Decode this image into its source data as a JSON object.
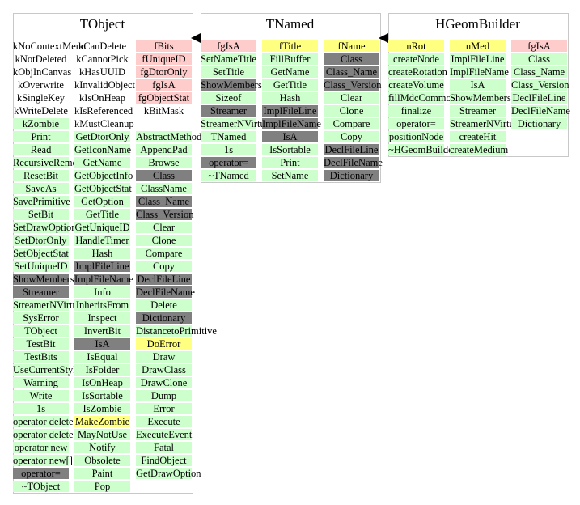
{
  "classes": [
    {
      "title": "TObject",
      "columns": [
        [
          {
            "t": "kNoContextMenu",
            "c": "white"
          },
          {
            "t": "kNotDeleted",
            "c": "white"
          },
          {
            "t": "kObjInCanvas",
            "c": "white"
          },
          {
            "t": "kOverwrite",
            "c": "white"
          },
          {
            "t": "kSingleKey",
            "c": "white"
          },
          {
            "t": "kWriteDelete",
            "c": "white"
          },
          {
            "t": "kZombie",
            "c": "green"
          },
          {
            "t": "Print",
            "c": "green"
          },
          {
            "t": "Read",
            "c": "green"
          },
          {
            "t": "RecursiveRemove",
            "c": "green"
          },
          {
            "t": "ResetBit",
            "c": "green"
          },
          {
            "t": "SaveAs",
            "c": "green"
          },
          {
            "t": "SavePrimitive",
            "c": "green"
          },
          {
            "t": "SetBit",
            "c": "green"
          },
          {
            "t": "SetDrawOption",
            "c": "green"
          },
          {
            "t": "SetDtorOnly",
            "c": "green"
          },
          {
            "t": "SetObjectStat",
            "c": "green"
          },
          {
            "t": "SetUniqueID",
            "c": "green"
          },
          {
            "t": "ShowMembers",
            "c": "gray"
          },
          {
            "t": "Streamer",
            "c": "gray"
          },
          {
            "t": "StreamerNVirtual",
            "c": "green"
          },
          {
            "t": "SysError",
            "c": "green"
          },
          {
            "t": "TObject",
            "c": "green"
          },
          {
            "t": "TestBit",
            "c": "green"
          },
          {
            "t": "TestBits",
            "c": "green"
          },
          {
            "t": "UseCurrentStyle",
            "c": "green"
          },
          {
            "t": "Warning",
            "c": "green"
          },
          {
            "t": "Write",
            "c": "green"
          },
          {
            "t": "1s",
            "c": "green"
          },
          {
            "t": "operator delete",
            "c": "green"
          },
          {
            "t": "operator delete[]",
            "c": "green"
          },
          {
            "t": "operator new",
            "c": "green"
          },
          {
            "t": "operator new[]",
            "c": "green"
          },
          {
            "t": "operator=",
            "c": "gray"
          },
          {
            "t": "~TObject",
            "c": "green"
          }
        ],
        [
          {
            "t": "kCanDelete",
            "c": "white"
          },
          {
            "t": "kCannotPick",
            "c": "white"
          },
          {
            "t": "kHasUUID",
            "c": "white"
          },
          {
            "t": "kInvalidObject",
            "c": "white"
          },
          {
            "t": "kIsOnHeap",
            "c": "white"
          },
          {
            "t": "kIsReferenced",
            "c": "white"
          },
          {
            "t": "kMustCleanup",
            "c": "white"
          },
          {
            "t": "GetDtorOnly",
            "c": "green"
          },
          {
            "t": "GetIconName",
            "c": "green"
          },
          {
            "t": "GetName",
            "c": "green"
          },
          {
            "t": "GetObjectInfo",
            "c": "green"
          },
          {
            "t": "GetObjectStat",
            "c": "green"
          },
          {
            "t": "GetOption",
            "c": "green"
          },
          {
            "t": "GetTitle",
            "c": "green"
          },
          {
            "t": "GetUniqueID",
            "c": "green"
          },
          {
            "t": "HandleTimer",
            "c": "green"
          },
          {
            "t": "Hash",
            "c": "green"
          },
          {
            "t": "ImplFileLine",
            "c": "gray"
          },
          {
            "t": "ImplFileName",
            "c": "gray"
          },
          {
            "t": "Info",
            "c": "green"
          },
          {
            "t": "InheritsFrom",
            "c": "green"
          },
          {
            "t": "Inspect",
            "c": "green"
          },
          {
            "t": "InvertBit",
            "c": "green"
          },
          {
            "t": "IsA",
            "c": "gray"
          },
          {
            "t": "IsEqual",
            "c": "green"
          },
          {
            "t": "IsFolder",
            "c": "green"
          },
          {
            "t": "IsOnHeap",
            "c": "green"
          },
          {
            "t": "IsSortable",
            "c": "green"
          },
          {
            "t": "IsZombie",
            "c": "green"
          },
          {
            "t": "MakeZombie",
            "c": "yellow"
          },
          {
            "t": "MayNotUse",
            "c": "green"
          },
          {
            "t": "Notify",
            "c": "green"
          },
          {
            "t": "Obsolete",
            "c": "green"
          },
          {
            "t": "Paint",
            "c": "green"
          },
          {
            "t": "Pop",
            "c": "green"
          }
        ],
        [
          {
            "t": "fBits",
            "c": "pink"
          },
          {
            "t": "fUniqueID",
            "c": "pink"
          },
          {
            "t": "fgDtorOnly",
            "c": "pink"
          },
          {
            "t": "fgIsA",
            "c": "pink"
          },
          {
            "t": "fgObjectStat",
            "c": "pink"
          },
          {
            "t": "kBitMask",
            "c": "white"
          },
          {
            "t": "",
            "c": "white"
          },
          {
            "t": "AbstractMethod",
            "c": "green"
          },
          {
            "t": "AppendPad",
            "c": "green"
          },
          {
            "t": "Browse",
            "c": "green"
          },
          {
            "t": "Class",
            "c": "gray"
          },
          {
            "t": "ClassName",
            "c": "green"
          },
          {
            "t": "Class_Name",
            "c": "gray"
          },
          {
            "t": "Class_Version",
            "c": "gray"
          },
          {
            "t": "Clear",
            "c": "green"
          },
          {
            "t": "Clone",
            "c": "green"
          },
          {
            "t": "Compare",
            "c": "green"
          },
          {
            "t": "Copy",
            "c": "green"
          },
          {
            "t": "DeclFileLine",
            "c": "gray"
          },
          {
            "t": "DeclFileName",
            "c": "gray"
          },
          {
            "t": "Delete",
            "c": "green"
          },
          {
            "t": "Dictionary",
            "c": "gray"
          },
          {
            "t": "DistancetoPrimitive",
            "c": "green"
          },
          {
            "t": "DoError",
            "c": "yellow"
          },
          {
            "t": "Draw",
            "c": "green"
          },
          {
            "t": "DrawClass",
            "c": "green"
          },
          {
            "t": "DrawClone",
            "c": "green"
          },
          {
            "t": "Dump",
            "c": "green"
          },
          {
            "t": "Error",
            "c": "green"
          },
          {
            "t": "Execute",
            "c": "green"
          },
          {
            "t": "ExecuteEvent",
            "c": "green"
          },
          {
            "t": "Fatal",
            "c": "green"
          },
          {
            "t": "FindObject",
            "c": "green"
          },
          {
            "t": "GetDrawOption",
            "c": "green"
          }
        ]
      ]
    },
    {
      "title": "TNamed",
      "columns": [
        [
          {
            "t": "fgIsA",
            "c": "pink"
          },
          {
            "t": "SetNameTitle",
            "c": "green"
          },
          {
            "t": "SetTitle",
            "c": "green"
          },
          {
            "t": "ShowMembers",
            "c": "gray"
          },
          {
            "t": "Sizeof",
            "c": "green"
          },
          {
            "t": "Streamer",
            "c": "gray"
          },
          {
            "t": "StreamerNVirtual",
            "c": "green"
          },
          {
            "t": "TNamed",
            "c": "green"
          },
          {
            "t": "1s",
            "c": "green"
          },
          {
            "t": "operator=",
            "c": "gray"
          },
          {
            "t": "~TNamed",
            "c": "green"
          }
        ],
        [
          {
            "t": "fTitle",
            "c": "yellow"
          },
          {
            "t": "FillBuffer",
            "c": "green"
          },
          {
            "t": "GetName",
            "c": "green"
          },
          {
            "t": "GetTitle",
            "c": "green"
          },
          {
            "t": "Hash",
            "c": "green"
          },
          {
            "t": "ImplFileLine",
            "c": "gray"
          },
          {
            "t": "ImplFileName",
            "c": "gray"
          },
          {
            "t": "IsA",
            "c": "gray"
          },
          {
            "t": "IsSortable",
            "c": "green"
          },
          {
            "t": "Print",
            "c": "green"
          },
          {
            "t": "SetName",
            "c": "green"
          }
        ],
        [
          {
            "t": "fName",
            "c": "yellow"
          },
          {
            "t": "Class",
            "c": "gray"
          },
          {
            "t": "Class_Name",
            "c": "gray"
          },
          {
            "t": "Class_Version",
            "c": "gray"
          },
          {
            "t": "Clear",
            "c": "green"
          },
          {
            "t": "Clone",
            "c": "green"
          },
          {
            "t": "Compare",
            "c": "green"
          },
          {
            "t": "Copy",
            "c": "green"
          },
          {
            "t": "DeclFileLine",
            "c": "gray"
          },
          {
            "t": "DeclFileName",
            "c": "gray"
          },
          {
            "t": "Dictionary",
            "c": "gray"
          }
        ]
      ]
    },
    {
      "title": "HGeomBuilder",
      "columns": [
        [
          {
            "t": "nRot",
            "c": "yellow"
          },
          {
            "t": "createNode",
            "c": "green"
          },
          {
            "t": "createRotation",
            "c": "green"
          },
          {
            "t": "createVolume",
            "c": "green"
          },
          {
            "t": "fillMdcCommonBlock",
            "c": "green"
          },
          {
            "t": "finalize",
            "c": "green"
          },
          {
            "t": "operator=",
            "c": "green"
          },
          {
            "t": "positionNode",
            "c": "green"
          },
          {
            "t": "~HGeomBuilder",
            "c": "green"
          }
        ],
        [
          {
            "t": "nMed",
            "c": "yellow"
          },
          {
            "t": "ImplFileLine",
            "c": "green"
          },
          {
            "t": "ImplFileName",
            "c": "green"
          },
          {
            "t": "IsA",
            "c": "green"
          },
          {
            "t": "ShowMembers",
            "c": "green"
          },
          {
            "t": "Streamer",
            "c": "green"
          },
          {
            "t": "StreamerNVirtual",
            "c": "green"
          },
          {
            "t": "createHit",
            "c": "green"
          },
          {
            "t": "createMedium",
            "c": "green"
          }
        ],
        [
          {
            "t": "fgIsA",
            "c": "pink"
          },
          {
            "t": "Class",
            "c": "green"
          },
          {
            "t": "Class_Name",
            "c": "green"
          },
          {
            "t": "Class_Version",
            "c": "green"
          },
          {
            "t": "DeclFileLine",
            "c": "green"
          },
          {
            "t": "DeclFileName",
            "c": "green"
          },
          {
            "t": "Dictionary",
            "c": "green"
          }
        ]
      ]
    }
  ],
  "colors": {
    "green": "#ccffcc",
    "pink": "#ffcccc",
    "yellow": "#ffff80",
    "gray": "#808080",
    "border": "#c8c8c8",
    "arrow": "#000000"
  }
}
